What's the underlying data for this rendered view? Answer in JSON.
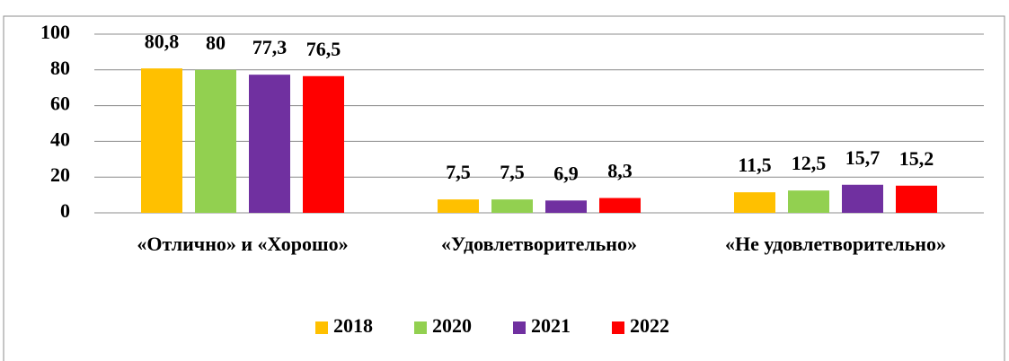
{
  "chart_data": {
    "type": "bar",
    "categories": [
      "«Отлично» и «Хорошо»",
      "«Удовлетворительно»",
      "«Не удовлетворительно»"
    ],
    "series": [
      {
        "name": "2018",
        "color": "#FFC000",
        "values": [
          80.8,
          7.5,
          11.5
        ],
        "value_labels": [
          "80,8",
          "7,5",
          "11,5"
        ]
      },
      {
        "name": "2020",
        "color": "#92D050",
        "values": [
          80,
          7.5,
          12.5
        ],
        "value_labels": [
          "80",
          "7,5",
          "12,5"
        ]
      },
      {
        "name": "2021",
        "color": "#7030A0",
        "values": [
          77.3,
          6.9,
          15.7
        ],
        "value_labels": [
          "77,3",
          "6,9",
          "15,7"
        ]
      },
      {
        "name": "2022",
        "color": "#FF0000",
        "values": [
          76.5,
          8.3,
          15.2
        ],
        "value_labels": [
          "76,5",
          "8,3",
          "15,2"
        ]
      }
    ],
    "ylim": [
      0,
      100
    ],
    "yticks": [
      0,
      20,
      40,
      60,
      80,
      100
    ],
    "grid": true,
    "legend": "bottom"
  }
}
